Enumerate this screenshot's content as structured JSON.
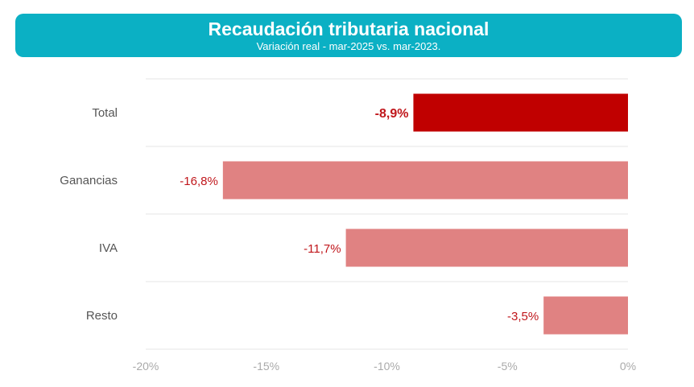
{
  "header": {
    "title": "Recaudación tributaria nacional",
    "subtitle": "Variación real - mar-2025 vs. mar-2023."
  },
  "chart_data": {
    "type": "bar",
    "orientation": "horizontal",
    "title": "Recaudación tributaria nacional",
    "subtitle": "Variación real - mar-2025 vs. mar-2023.",
    "categories": [
      "Total",
      "Ganancias",
      "IVA",
      "Resto"
    ],
    "values": [
      -8.9,
      -16.8,
      -11.7,
      -3.5
    ],
    "value_labels": [
      "-8,9%",
      "-16,8%",
      "-11,7%",
      "-3,5%"
    ],
    "highlight": [
      true,
      false,
      false,
      false
    ],
    "xlim": [
      -20,
      0
    ],
    "x_ticks": [
      -20,
      -15,
      -10,
      -5,
      0
    ],
    "x_tick_labels": [
      "-20%",
      "-15%",
      "-10%",
      "-5%",
      "0%"
    ],
    "grid": true,
    "colors": {
      "highlight": "#c00000",
      "default": "#e08282",
      "label": "#c0161b"
    }
  }
}
